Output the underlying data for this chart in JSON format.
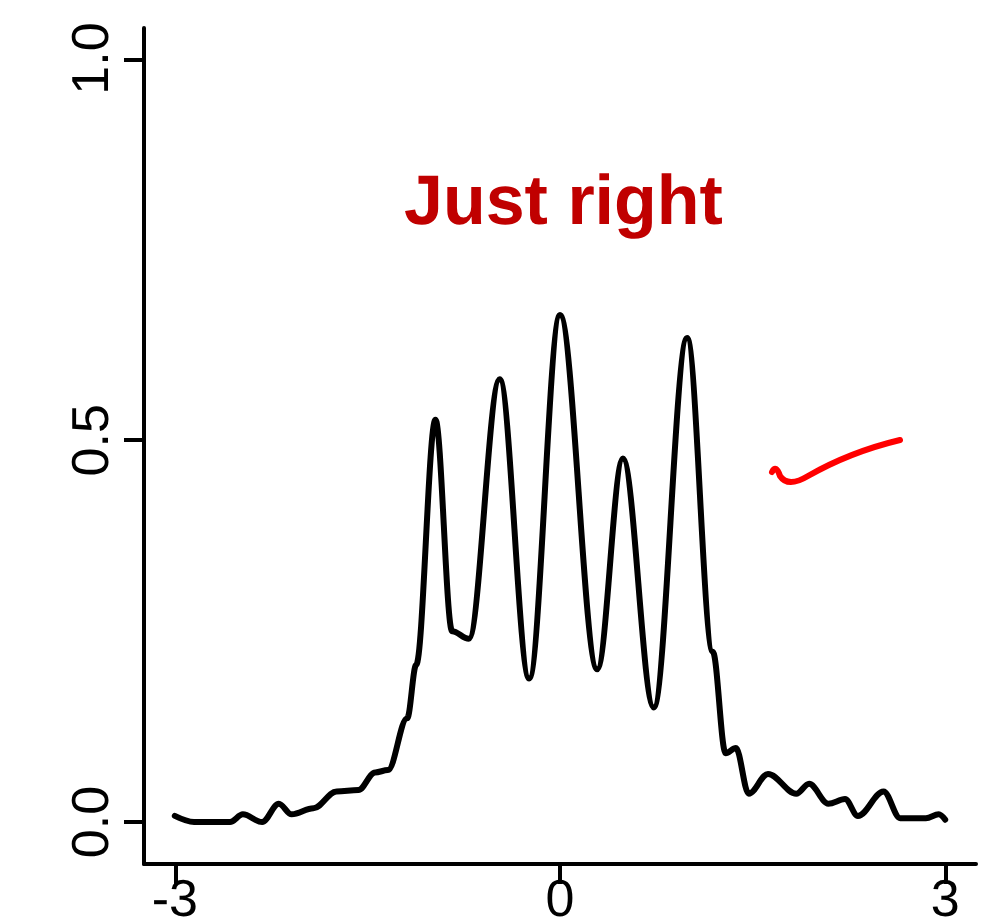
{
  "chart_data": {
    "type": "line",
    "title": "Just right",
    "x": [
      -3.0,
      -2.85,
      -2.57,
      -2.47,
      -2.32,
      -2.19,
      -2.09,
      -1.92,
      -1.74,
      -1.57,
      -1.44,
      -1.34,
      -1.19,
      -1.12,
      -0.97,
      -0.84,
      -0.71,
      -0.47,
      -0.24,
      0.0,
      0.29,
      0.49,
      0.73,
      0.99,
      1.19,
      1.29,
      1.37,
      1.47,
      1.62,
      1.84,
      1.94,
      2.09,
      2.22,
      2.32,
      2.52,
      2.65,
      2.85,
      2.95,
      3.0
    ],
    "series": [
      {
        "color": "#000000",
        "values": [
          0.008,
          0,
          0,
          0.01,
          0,
          0.024,
          0.01,
          0.018,
          0.04,
          0.042,
          0.065,
          0.068,
          0.136,
          0.206,
          0.527,
          0.25,
          0.24,
          0.58,
          0.188,
          0.664,
          0.2,
          0.476,
          0.15,
          0.634,
          0.223,
          0.09,
          0.097,
          0.037,
          0.063,
          0.037,
          0.05,
          0.024,
          0.03,
          0.008,
          0.04,
          0.005,
          0.005,
          0.01,
          0.003
        ]
      }
    ],
    "xlim": [
      -3.24,
      3.24
    ],
    "ylim": [
      -0.055,
      1.04
    ],
    "xticks": [
      -3,
      0,
      3
    ],
    "yticks": [
      {
        "value": 0,
        "label": "0.0"
      },
      0.5,
      {
        "value": 1,
        "label": "1.0"
      }
    ],
    "grid": false,
    "marker": "none",
    "line_style": "solid"
  }
}
